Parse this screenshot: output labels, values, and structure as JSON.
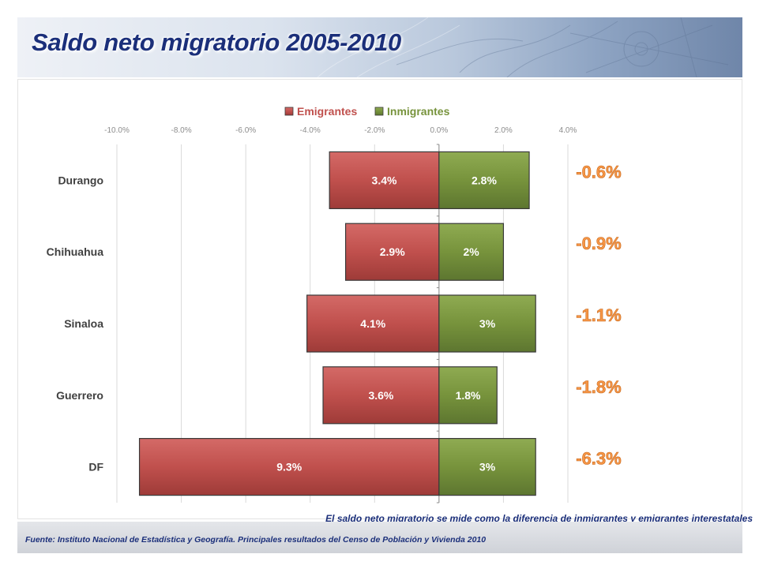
{
  "header": {
    "title": "Saldo neto migratorio 2005-2010"
  },
  "colors": {
    "emigrantes": "#c0504d",
    "inmigrantes": "#77933c",
    "net": "#f79646",
    "title": "#1b2f7a"
  },
  "chart_data": {
    "type": "bar",
    "orientation": "horizontal-diverging",
    "categories": [
      "Durango",
      "Chihuahua",
      "Sinaloa",
      "Guerrero",
      "DF"
    ],
    "series": [
      {
        "name": "Emigrantes",
        "values": [
          -3.4,
          -2.9,
          -4.1,
          -3.6,
          -9.3
        ],
        "labels": [
          "3.4%",
          "2.9%",
          "4.1%",
          "3.6%",
          "9.3%"
        ]
      },
      {
        "name": "Inmigrantes",
        "values": [
          2.8,
          2.0,
          3.0,
          1.8,
          3.0
        ],
        "labels": [
          "2.8%",
          "2%",
          "3%",
          "1.8%",
          "3%"
        ]
      }
    ],
    "net_labels": [
      "-0.6%",
      "-0.9%",
      "-1.1%",
      "-1.8%",
      "-6.3%"
    ],
    "xlim": [
      -10,
      4
    ],
    "xticks": [
      -10,
      -8,
      -6,
      -4,
      -2,
      0,
      2,
      4
    ],
    "xtick_labels": [
      "-10.0%",
      "-8.0%",
      "-6.0%",
      "-4.0%",
      "-2.0%",
      "0.0%",
      "2.0%",
      "4.0%"
    ],
    "legend": [
      "Emigrantes",
      "Inmigrantes"
    ],
    "legend_position": "top",
    "grid": true
  },
  "note": "El saldo neto migratorio se mide como la diferencia de inmigrantes y emigrantes interestatales",
  "footer": {
    "source": "Fuente: Instituto Nacional de Estadística y Geografía. Principales resultados del Censo de Población y Vivienda 2010"
  }
}
